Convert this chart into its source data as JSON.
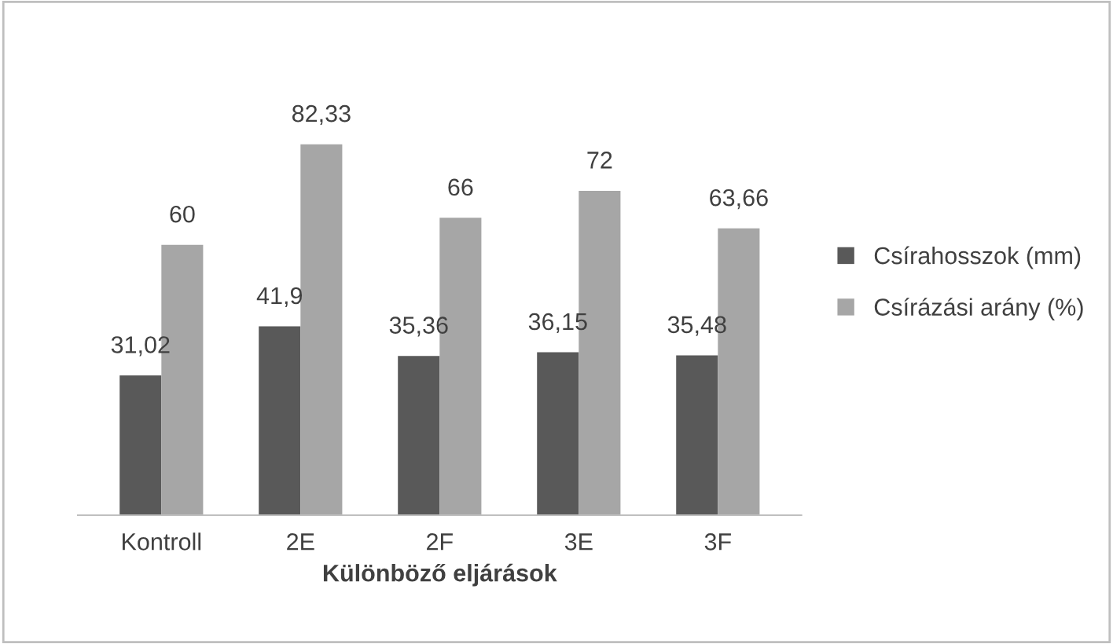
{
  "chart_data": {
    "type": "bar",
    "xlabel": "Különböző eljárások",
    "categories": [
      "Kontroll",
      "2E",
      "2F",
      "3E",
      "3F"
    ],
    "legend": "right",
    "series": [
      {
        "name": "Csírahosszok (mm)",
        "color": "#595959",
        "values": [
          31.02,
          41.9,
          35.36,
          36.15,
          35.48
        ],
        "value_labels": [
          "31,02",
          "41,9",
          "35,36",
          "36,15",
          "35,48"
        ]
      },
      {
        "name": "Csírázási arány (%)",
        "color": "#a6a6a6",
        "values": [
          60,
          82.33,
          66,
          72,
          63.66
        ],
        "value_labels": [
          "60",
          "82,33",
          "66",
          "72",
          "63,66"
        ]
      }
    ]
  }
}
